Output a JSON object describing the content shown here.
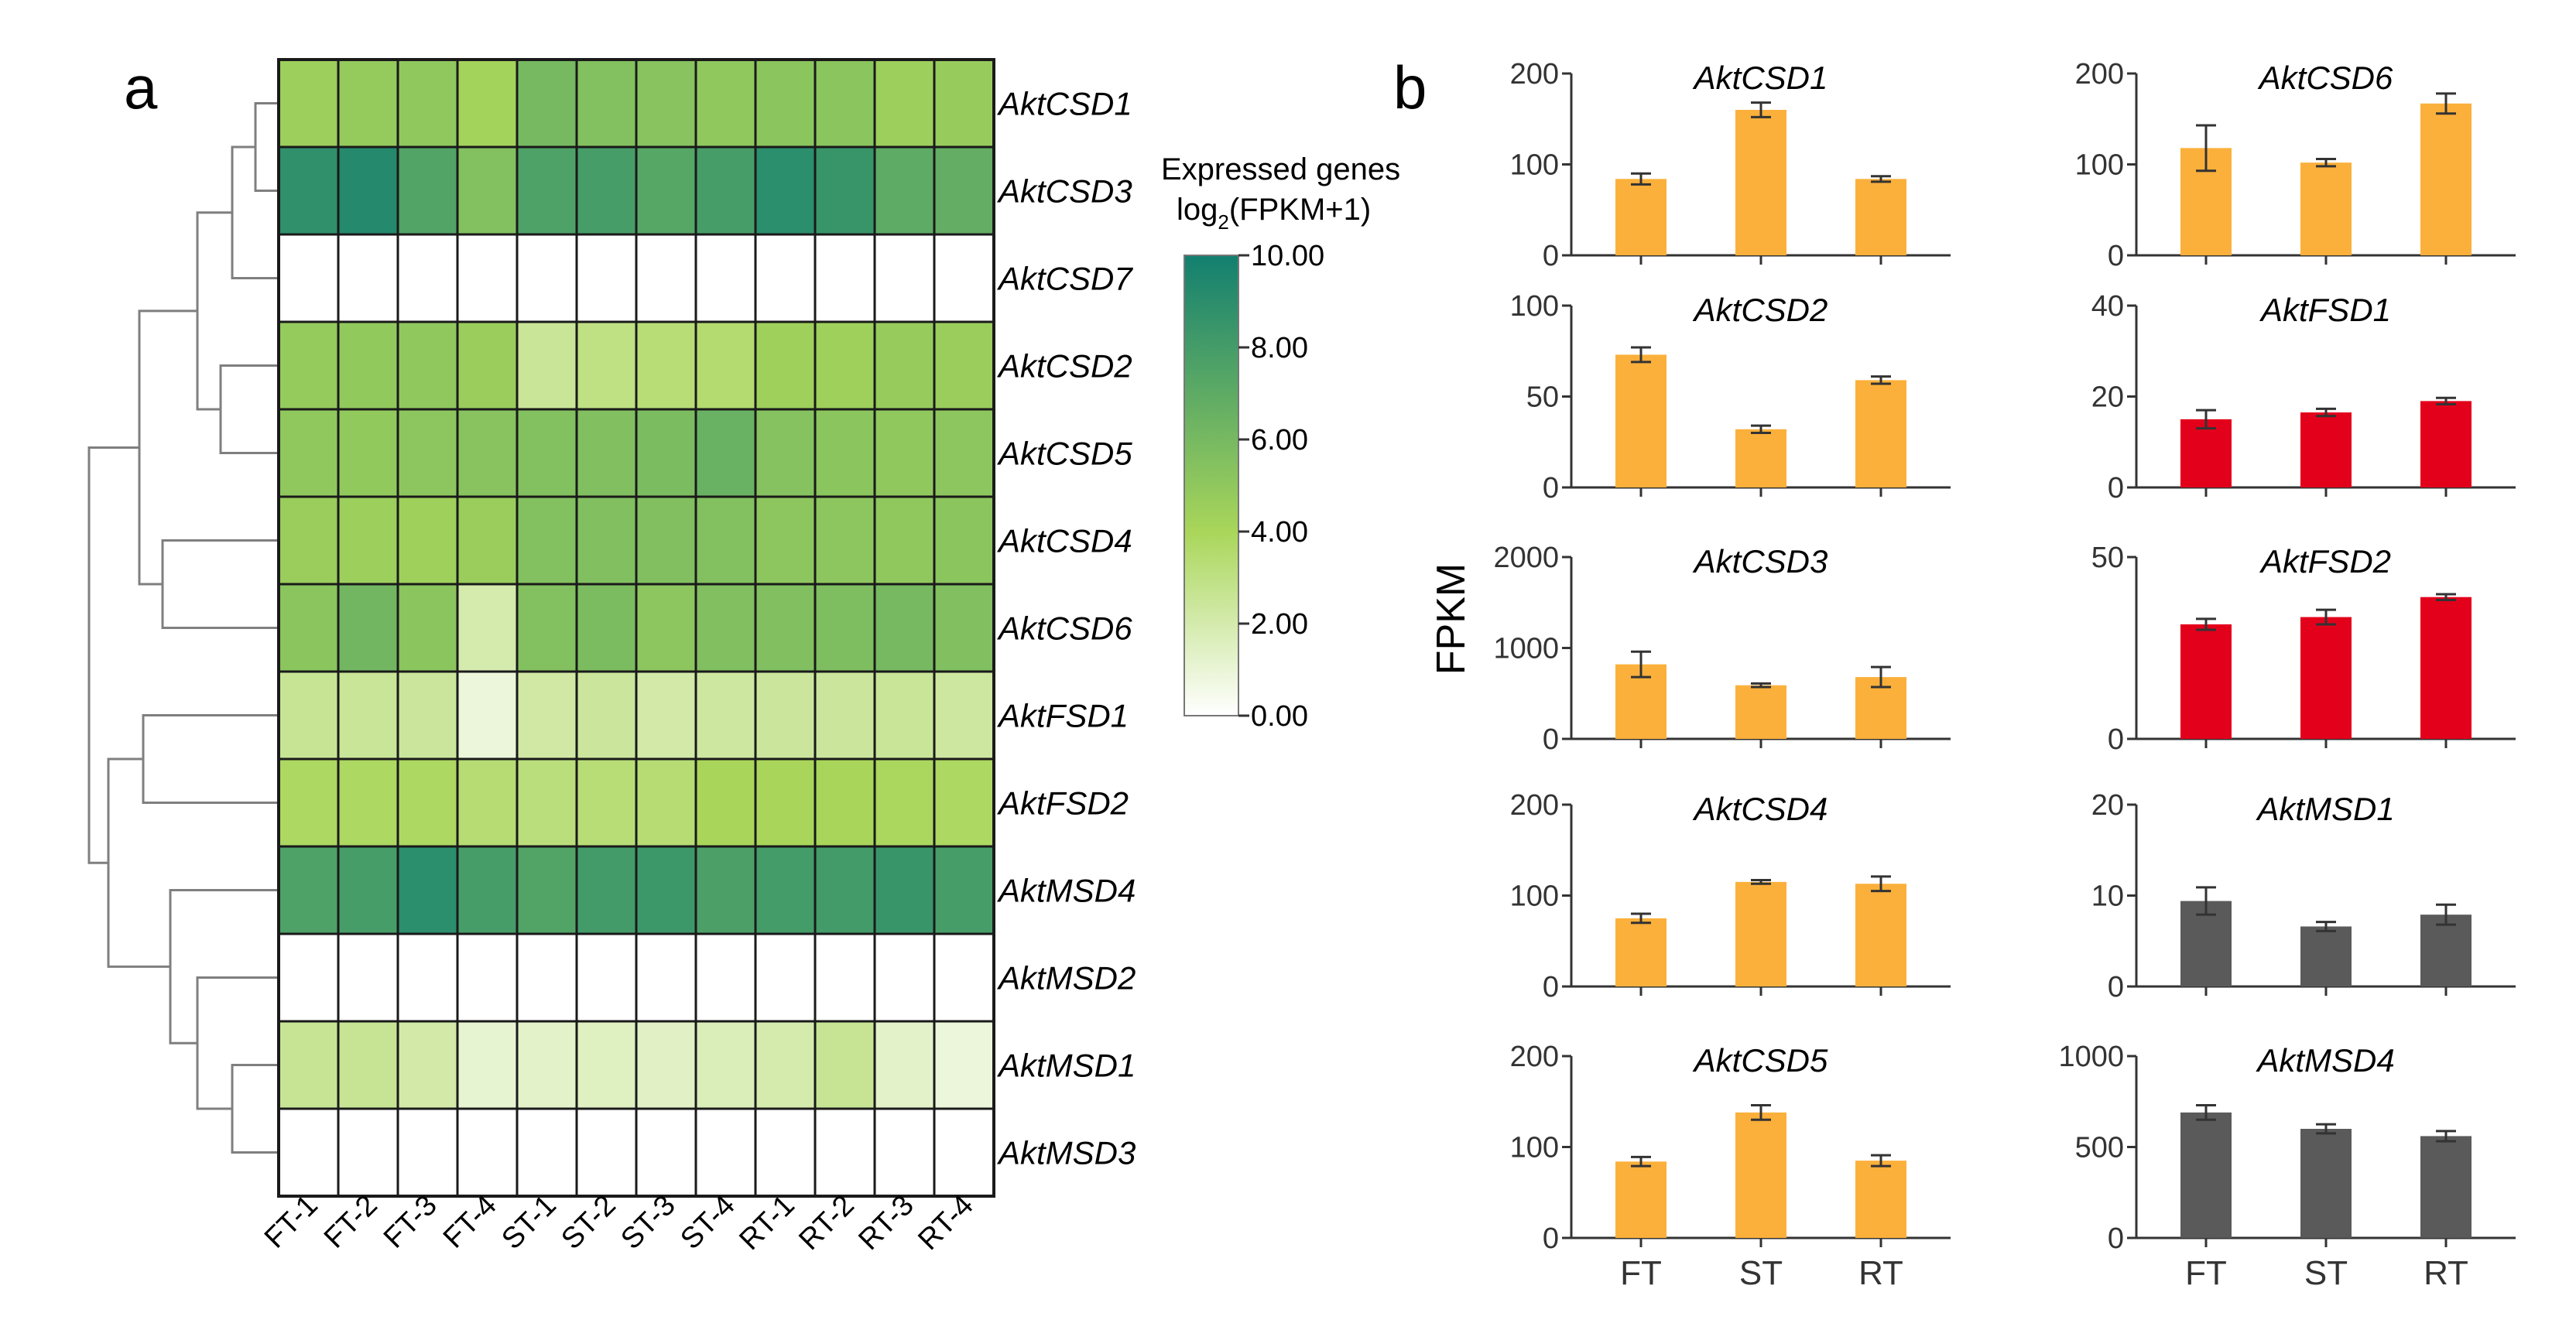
{
  "panel_labels": {
    "a": "a",
    "b": "b"
  },
  "chart_data": [
    {
      "type": "heatmap",
      "panel": "a",
      "columns": [
        "FT-1",
        "FT-2",
        "FT-3",
        "FT-4",
        "ST-1",
        "ST-2",
        "ST-3",
        "ST-4",
        "RT-1",
        "RT-2",
        "RT-3",
        "RT-4"
      ],
      "rows": [
        "AktCSD1",
        "AktCSD3",
        "AktCSD7",
        "AktCSD2",
        "AktCSD5",
        "AktCSD4",
        "AktCSD6",
        "AktFSD1",
        "AktFSD2",
        "AktMSD4",
        "AktMSD2",
        "AktMSD1",
        "AktMSD3"
      ],
      "values": [
        [
          4.5,
          4.8,
          5.0,
          4.2,
          6.0,
          5.5,
          5.3,
          5.0,
          5.2,
          5.2,
          4.5,
          4.7
        ],
        [
          8.8,
          9.3,
          7.5,
          5.5,
          7.6,
          7.9,
          7.3,
          7.9,
          9.0,
          8.5,
          7.0,
          6.8
        ],
        [
          0,
          0,
          0,
          0,
          0,
          0,
          0,
          0,
          0,
          0,
          0,
          0
        ],
        [
          4.8,
          4.9,
          5.0,
          4.6,
          2.5,
          3.0,
          3.3,
          3.5,
          4.4,
          4.4,
          4.7,
          4.6
        ],
        [
          5.0,
          4.9,
          5.1,
          5.3,
          5.5,
          5.6,
          5.8,
          6.5,
          5.4,
          5.2,
          5.0,
          5.1
        ],
        [
          4.6,
          4.5,
          4.4,
          4.6,
          5.5,
          5.6,
          5.6,
          5.5,
          5.1,
          5.1,
          5.0,
          5.2
        ],
        [
          5.2,
          6.2,
          5.2,
          2.0,
          5.5,
          5.8,
          5.1,
          5.6,
          5.6,
          5.7,
          6.0,
          5.6
        ],
        [
          2.6,
          2.5,
          2.4,
          0.9,
          2.2,
          2.4,
          2.1,
          2.3,
          2.4,
          2.4,
          2.5,
          2.3
        ],
        [
          3.8,
          3.8,
          3.8,
          3.4,
          3.2,
          3.3,
          3.4,
          4.0,
          4.0,
          4.0,
          3.9,
          3.8
        ],
        [
          7.6,
          7.9,
          9.0,
          7.9,
          7.5,
          8.1,
          8.3,
          7.7,
          8.0,
          8.1,
          8.5,
          7.9
        ],
        [
          0,
          0,
          0,
          0,
          0,
          0,
          0,
          0,
          0,
          0,
          0,
          0
        ],
        [
          2.6,
          2.6,
          2.1,
          1.1,
          1.3,
          1.5,
          1.4,
          1.7,
          2.0,
          2.6,
          1.3,
          0.9
        ],
        [
          0,
          0,
          0,
          0,
          0,
          0,
          0,
          0,
          0,
          0,
          0,
          0
        ]
      ],
      "colorbar": {
        "title_line1": "Expressed genes",
        "title_line2_pre": "log",
        "title_line2_sub": "2",
        "title_line2_post": "(FPKM+1)",
        "min": 0,
        "max": 10,
        "ticks": [
          "10.00",
          "8.00",
          "6.00",
          "4.00",
          "2.00",
          "0.00"
        ],
        "tick_values": [
          10,
          8,
          6,
          4,
          2,
          0
        ],
        "colors": {
          "low": "#ffffff",
          "mid": "#a9d65a",
          "high": "#127f6f"
        }
      },
      "dendrogram": true
    },
    {
      "type": "bar",
      "panel": "b",
      "ylabel": "FPKM",
      "categories": [
        "FT",
        "ST",
        "RT"
      ],
      "colors": {
        "CSD": "#fbb03b",
        "FSD": "#e3001b",
        "MSD": "#5a5a5a"
      },
      "subplots": [
        {
          "title": "AktCSD1",
          "color_key": "CSD",
          "values": [
            84,
            160,
            84
          ],
          "errors": [
            6,
            8,
            3
          ],
          "ylim": [
            0,
            200
          ],
          "ticks": [
            0,
            100,
            200
          ]
        },
        {
          "title": "AktCSD2",
          "color_key": "CSD",
          "values": [
            73,
            32,
            59
          ],
          "errors": [
            4,
            2,
            2
          ],
          "ylim": [
            0,
            100
          ],
          "ticks": [
            0,
            50,
            100
          ]
        },
        {
          "title": "AktCSD3",
          "color_key": "CSD",
          "values": [
            820,
            590,
            680
          ],
          "errors": [
            140,
            20,
            110
          ],
          "ylim": [
            0,
            2000
          ],
          "ticks": [
            0,
            1000,
            2000
          ]
        },
        {
          "title": "AktCSD4",
          "color_key": "CSD",
          "values": [
            75,
            115,
            113
          ],
          "errors": [
            5,
            2,
            8
          ],
          "ylim": [
            0,
            200
          ],
          "ticks": [
            0,
            100,
            200
          ]
        },
        {
          "title": "AktCSD5",
          "color_key": "CSD",
          "values": [
            84,
            138,
            85
          ],
          "errors": [
            5,
            8,
            6
          ],
          "ylim": [
            0,
            200
          ],
          "ticks": [
            0,
            100,
            200
          ]
        },
        {
          "title": "AktCSD6",
          "color_key": "CSD",
          "values": [
            118,
            102,
            167
          ],
          "errors": [
            25,
            4,
            11
          ],
          "ylim": [
            0,
            200
          ],
          "ticks": [
            0,
            100,
            200
          ]
        },
        {
          "title": "AktFSD1",
          "color_key": "FSD",
          "values": [
            15,
            16.5,
            19
          ],
          "errors": [
            2,
            0.8,
            0.7
          ],
          "ylim": [
            0,
            40
          ],
          "ticks": [
            0,
            20,
            40
          ]
        },
        {
          "title": "AktFSD2",
          "color_key": "FSD",
          "values": [
            31.5,
            33.5,
            39
          ],
          "errors": [
            1.5,
            2,
            0.8
          ],
          "ylim": [
            0,
            50
          ],
          "ticks": [
            0,
            50
          ]
        },
        {
          "title": "AktMSD1",
          "color_key": "MSD",
          "values": [
            9.4,
            6.6,
            7.9
          ],
          "errors": [
            1.5,
            0.5,
            1.1
          ],
          "ylim": [
            0,
            20
          ],
          "ticks": [
            0,
            10,
            20
          ]
        },
        {
          "title": "AktMSD4",
          "color_key": "MSD",
          "values": [
            690,
            600,
            560
          ],
          "errors": [
            40,
            25,
            28
          ],
          "ylim": [
            0,
            1000
          ],
          "ticks": [
            0,
            500,
            1000
          ]
        }
      ]
    }
  ]
}
